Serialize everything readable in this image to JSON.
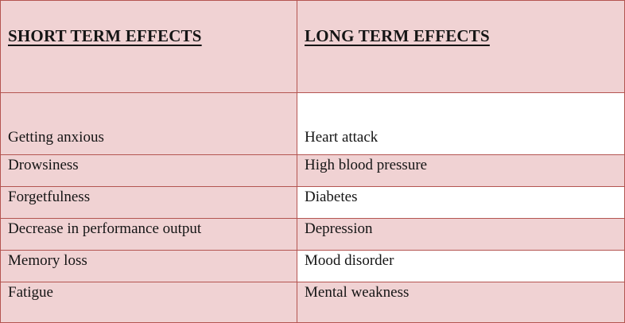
{
  "table": {
    "columns": [
      {
        "header": "SHORT TERM EFFECTS"
      },
      {
        "header": "LONG TERM EFFECTS"
      }
    ],
    "rows": [
      {
        "cells": [
          "Getting anxious",
          "Heart attack"
        ]
      },
      {
        "cells": [
          "Drowsiness",
          "High blood pressure"
        ]
      },
      {
        "cells": [
          "Forgetfulness",
          "Diabetes"
        ]
      },
      {
        "cells": [
          "Decrease in performance output",
          "Depression"
        ]
      },
      {
        "cells": [
          "Memory loss",
          "Mood disorder"
        ]
      },
      {
        "cells": [
          "Fatigue",
          "Mental weakness"
        ]
      }
    ],
    "colors": {
      "pink": "#f0d2d3",
      "white": "#ffffff",
      "border": "#b45551",
      "text": "#151515"
    }
  }
}
